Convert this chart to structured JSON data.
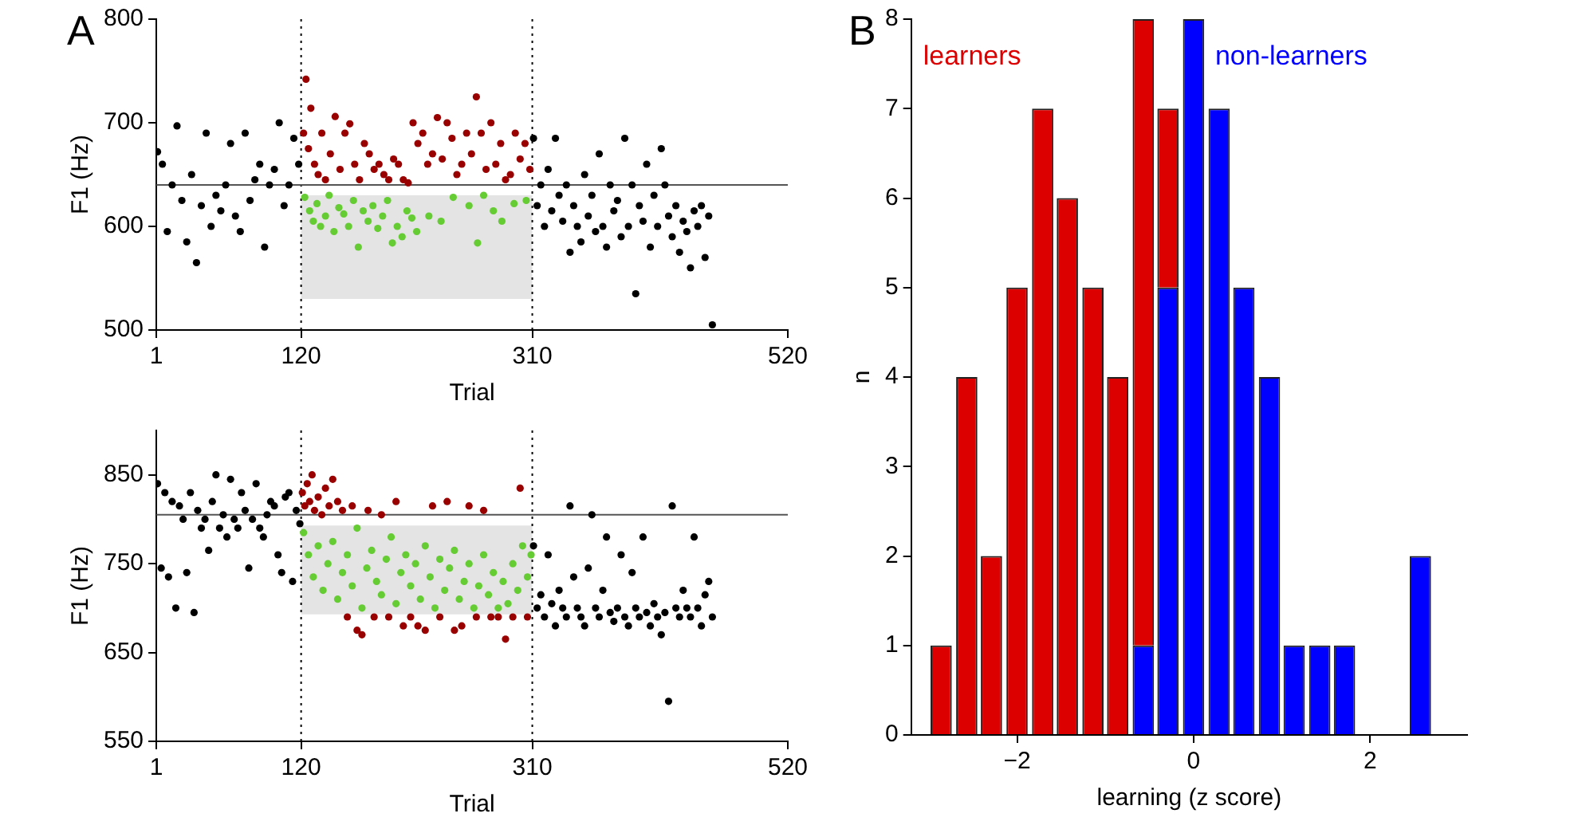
{
  "chart_data": [
    {
      "type": "scatter",
      "title": "A",
      "xlabel": "Trial",
      "ylabel": "F1 (Hz)",
      "xlim": [
        1,
        520
      ],
      "xticks": [
        1,
        120,
        310,
        520
      ],
      "ylim": [
        500,
        800
      ],
      "yticks": [
        500,
        600,
        700,
        800
      ],
      "marker": "circle",
      "ref_lines": [
        {
          "axis": "x",
          "value": 120,
          "color": "#000000",
          "line_style": "dotted"
        },
        {
          "axis": "x",
          "value": 310,
          "color": "#000000",
          "line_style": "dotted"
        },
        {
          "axis": "y",
          "value": 640,
          "color": "#555555",
          "line_style": "solid"
        }
      ],
      "series": [
        {
          "color": "#000000",
          "x": [
            2,
            6,
            10,
            14,
            18,
            22,
            26,
            30,
            34,
            38,
            42,
            46,
            50,
            54,
            58,
            62,
            66,
            70,
            74,
            78,
            82,
            86,
            90,
            94,
            98,
            102,
            106,
            110,
            114,
            118
          ],
          "values": [
            672,
            660,
            595,
            640,
            697,
            625,
            585,
            650,
            565,
            620,
            690,
            600,
            630,
            615,
            640,
            680,
            610,
            595,
            690,
            625,
            645,
            660,
            580,
            640,
            655,
            700,
            620,
            640,
            685,
            660
          ]
        },
        {
          "color": "#990000",
          "x": [
            122,
            124,
            126,
            128,
            131,
            134,
            137,
            140,
            144,
            148,
            152,
            156,
            160,
            164,
            168,
            172,
            176,
            180,
            184,
            188,
            192,
            196,
            200,
            204,
            208,
            212,
            216,
            220,
            224,
            228,
            232,
            236,
            240,
            244,
            248,
            252,
            256,
            260,
            264,
            268,
            272,
            276,
            280,
            284,
            288,
            292,
            296,
            300,
            304,
            308
          ],
          "values": [
            690,
            742,
            675,
            714,
            660,
            650,
            690,
            645,
            670,
            706,
            655,
            690,
            699,
            660,
            645,
            680,
            670,
            655,
            660,
            650,
            645,
            665,
            660,
            645,
            642,
            700,
            680,
            690,
            660,
            670,
            705,
            665,
            700,
            685,
            650,
            660,
            690,
            670,
            725,
            690,
            655,
            700,
            660,
            680,
            645,
            650,
            690,
            665,
            680,
            655
          ]
        },
        {
          "color": "#66cc33",
          "x": [
            123,
            127,
            130,
            133,
            136,
            140,
            143,
            147,
            151,
            155,
            159,
            163,
            167,
            171,
            175,
            179,
            183,
            187,
            191,
            195,
            199,
            203,
            207,
            211,
            215,
            225,
            235,
            245,
            258,
            265,
            270,
            278,
            285,
            295,
            305
          ],
          "values": [
            628,
            615,
            605,
            622,
            600,
            610,
            630,
            595,
            618,
            612,
            600,
            625,
            580,
            615,
            605,
            620,
            598,
            610,
            625,
            584,
            600,
            590,
            615,
            608,
            595,
            610,
            605,
            628,
            620,
            584,
            630,
            615,
            605,
            622,
            625
          ]
        },
        {
          "color": "#000000",
          "x": [
            311,
            314,
            317,
            320,
            323,
            326,
            329,
            332,
            335,
            338,
            341,
            344,
            347,
            350,
            353,
            356,
            359,
            362,
            365,
            368,
            371,
            374,
            377,
            380,
            383,
            386,
            389,
            392,
            395,
            398,
            401,
            404,
            407,
            410,
            413,
            416,
            419,
            422,
            425,
            428,
            431,
            434,
            437,
            440,
            443,
            446,
            449,
            452,
            455,
            458
          ],
          "values": [
            685,
            620,
            640,
            600,
            655,
            615,
            685,
            630,
            605,
            640,
            575,
            620,
            600,
            585,
            650,
            610,
            630,
            595,
            670,
            600,
            580,
            640,
            615,
            625,
            590,
            685,
            600,
            640,
            535,
            620,
            605,
            660,
            580,
            630,
            600,
            675,
            640,
            610,
            590,
            620,
            575,
            605,
            595,
            560,
            615,
            600,
            620,
            570,
            610,
            505
          ]
        }
      ],
      "bands": [
        {
          "axis": "y",
          "from": 530,
          "to": 630,
          "color": "#e4e4e4"
        }
      ]
    },
    {
      "type": "scatter",
      "xlabel": "Trial",
      "ylabel": "F1 (Hz)",
      "xlim": [
        1,
        520
      ],
      "xticks": [
        1,
        120,
        310,
        520
      ],
      "ylim": [
        550,
        900
      ],
      "yticks": [
        550,
        650,
        750,
        850
      ],
      "marker": "circle",
      "ref_lines": [
        {
          "axis": "x",
          "value": 120,
          "color": "#000000",
          "line_style": "dotted"
        },
        {
          "axis": "x",
          "value": 310,
          "color": "#000000",
          "line_style": "dotted"
        },
        {
          "axis": "y",
          "value": 805,
          "color": "#555555",
          "line_style": "solid"
        }
      ],
      "series": [
        {
          "color": "#000000",
          "x": [
            2,
            5,
            8,
            11,
            14,
            17,
            20,
            23,
            26,
            29,
            32,
            35,
            38,
            41,
            44,
            47,
            50,
            53,
            56,
            59,
            62,
            65,
            68,
            71,
            74,
            77,
            80,
            83,
            86,
            89,
            92,
            95,
            98,
            101,
            104,
            107,
            110,
            113,
            116,
            119
          ],
          "values": [
            840,
            745,
            830,
            735,
            820,
            700,
            815,
            800,
            740,
            830,
            695,
            810,
            790,
            800,
            765,
            820,
            850,
            790,
            805,
            780,
            845,
            800,
            790,
            830,
            810,
            745,
            800,
            840,
            790,
            780,
            805,
            820,
            815,
            760,
            740,
            825,
            830,
            730,
            810,
            795
          ]
        },
        {
          "color": "#990000",
          "x": [
            121,
            123,
            125,
            127,
            129,
            131,
            134,
            137,
            140,
            143,
            146,
            150,
            154,
            158,
            162,
            166,
            170,
            175,
            180,
            186,
            192,
            198,
            204,
            210,
            216,
            222,
            228,
            234,
            240,
            246,
            252,
            258,
            264,
            270,
            276,
            282,
            288,
            294,
            300,
            306
          ],
          "values": [
            830,
            815,
            840,
            820,
            850,
            810,
            825,
            805,
            835,
            815,
            845,
            820,
            810,
            690,
            815,
            675,
            670,
            810,
            690,
            805,
            690,
            820,
            680,
            690,
            680,
            675,
            815,
            690,
            820,
            675,
            680,
            815,
            690,
            810,
            690,
            690,
            665,
            690,
            835,
            690
          ]
        },
        {
          "color": "#66cc33",
          "x": [
            122,
            126,
            130,
            134,
            138,
            142,
            146,
            150,
            154,
            158,
            162,
            166,
            170,
            174,
            178,
            182,
            186,
            190,
            194,
            198,
            202,
            206,
            210,
            214,
            218,
            222,
            226,
            230,
            234,
            238,
            242,
            246,
            250,
            254,
            258,
            262,
            266,
            270,
            274,
            278,
            282,
            286,
            290,
            294,
            298,
            302,
            306,
            309
          ],
          "values": [
            785,
            760,
            735,
            770,
            720,
            750,
            775,
            710,
            740,
            760,
            725,
            790,
            700,
            745,
            765,
            730,
            715,
            755,
            780,
            705,
            740,
            760,
            725,
            750,
            710,
            770,
            735,
            700,
            755,
            720,
            745,
            765,
            710,
            730,
            750,
            700,
            725,
            760,
            715,
            740,
            700,
            730,
            705,
            750,
            720,
            770,
            735,
            760
          ]
        },
        {
          "color": "#000000",
          "x": [
            311,
            314,
            317,
            320,
            323,
            326,
            329,
            332,
            335,
            338,
            341,
            344,
            347,
            350,
            353,
            356,
            359,
            362,
            365,
            368,
            371,
            374,
            377,
            380,
            383,
            386,
            389,
            392,
            395,
            398,
            401,
            404,
            407,
            410,
            413,
            416,
            419,
            422,
            425,
            428,
            431,
            434,
            437,
            440,
            443,
            446,
            449,
            452,
            455,
            458
          ],
          "values": [
            770,
            700,
            715,
            690,
            760,
            705,
            680,
            720,
            700,
            690,
            815,
            735,
            700,
            690,
            680,
            745,
            805,
            700,
            690,
            720,
            780,
            695,
            685,
            700,
            760,
            690,
            680,
            740,
            700,
            690,
            780,
            695,
            680,
            705,
            690,
            670,
            695,
            595,
            815,
            700,
            690,
            720,
            700,
            690,
            780,
            700,
            680,
            715,
            730,
            690
          ]
        }
      ],
      "bands": [
        {
          "axis": "y",
          "from": 693,
          "to": 793,
          "color": "#e4e4e4"
        }
      ]
    },
    {
      "type": "bar",
      "title": "B",
      "xlabel": "learning (z score)",
      "ylabel": "n",
      "stacked": true,
      "xlim": [
        -3.2,
        3.1
      ],
      "xticks": [
        {
          "value": -2,
          "label": "−2"
        },
        0,
        2
      ],
      "ylim": [
        0,
        8
      ],
      "yticks": [
        0,
        1,
        2,
        3,
        4,
        5,
        6,
        7,
        8
      ],
      "x": [
        -2.86,
        -2.57,
        -2.29,
        -2,
        -1.71,
        -1.43,
        -1.14,
        -0.86,
        -0.57,
        -0.29,
        0,
        0.29,
        0.57,
        0.86,
        1.14,
        1.43,
        1.71,
        2,
        2.29,
        2.57
      ],
      "series": [
        {
          "name": "non-learners",
          "color": "#0000ff",
          "values": [
            0,
            0,
            0,
            0,
            0,
            0,
            0,
            0,
            1,
            5,
            8,
            7,
            5,
            4,
            1,
            1,
            1,
            0,
            0,
            2
          ]
        },
        {
          "name": "learners",
          "color": "#dd0000",
          "values": [
            1,
            4,
            2,
            5,
            7,
            6,
            5,
            4,
            7,
            2,
            0,
            0,
            0,
            0,
            0,
            0,
            0,
            0,
            0,
            0
          ]
        }
      ]
    }
  ]
}
